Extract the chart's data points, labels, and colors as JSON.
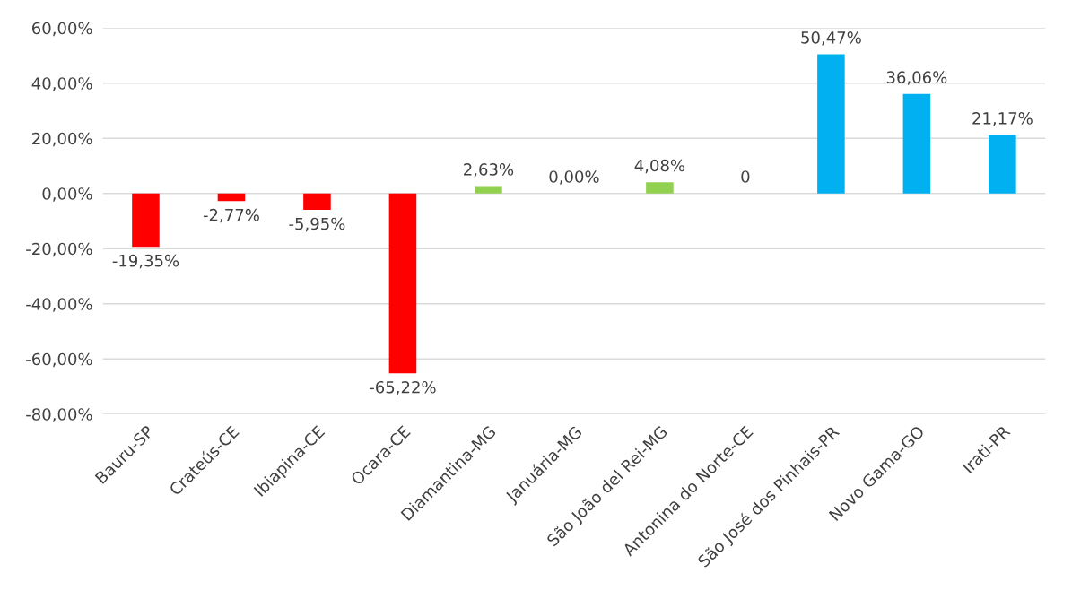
{
  "chart_data": {
    "type": "bar",
    "categories": [
      "Bauru-SP",
      "Crateús-CE",
      "Ibiapina-CE",
      "Ocara-CE",
      "Diamantina-MG",
      "Januária-MG",
      "São João del Rei-MG",
      "Antonina do Norte-CE",
      "São José dos Pinhais-PR",
      "Novo Gama-GO",
      "Irati-PR"
    ],
    "values": [
      -19.35,
      -2.77,
      -5.95,
      -65.22,
      2.63,
      0.0,
      4.08,
      0,
      50.47,
      36.06,
      21.17
    ],
    "value_labels": [
      "-19,35%",
      "-2,77%",
      "-5,95%",
      "-65,22%",
      "2,63%",
      "0,00%",
      "4,08%",
      "0",
      "50,47%",
      "36,06%",
      "21,17%"
    ],
    "colors": [
      "#ff0000",
      "#ff0000",
      "#ff0000",
      "#ff0000",
      "#92d050",
      "#92d050",
      "#92d050",
      "#92d050",
      "#00b0f0",
      "#00b0f0",
      "#00b0f0"
    ],
    "ylim": [
      -80,
      60
    ],
    "yticks": [
      {
        "value": -80,
        "label": "-80,00%"
      },
      {
        "value": -60,
        "label": "-60,00%"
      },
      {
        "value": -40,
        "label": "-40,00%"
      },
      {
        "value": -20,
        "label": "-20,00%"
      },
      {
        "value": 0,
        "label": "0,00%"
      },
      {
        "value": 20,
        "label": "20,00%"
      },
      {
        "value": 40,
        "label": "40,00%"
      },
      {
        "value": 60,
        "label": "60,00%"
      }
    ],
    "grid": "y",
    "legend": false
  }
}
